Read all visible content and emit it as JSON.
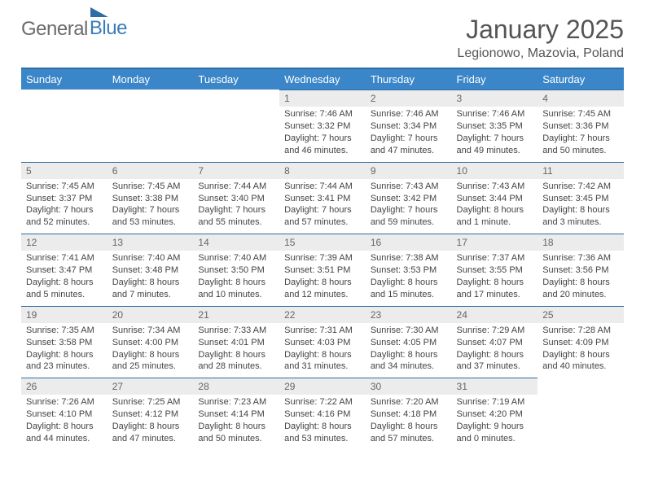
{
  "logo": {
    "text1": "General",
    "text2": "Blue"
  },
  "title": "January 2025",
  "location": "Legionowo, Mazovia, Poland",
  "colors": {
    "header_bg": "#3a86c8",
    "header_text": "#ffffff",
    "accent_line": "#2e6da4",
    "daynum_bg": "#ececec",
    "text": "#444444"
  },
  "day_labels": [
    "Sunday",
    "Monday",
    "Tuesday",
    "Wednesday",
    "Thursday",
    "Friday",
    "Saturday"
  ],
  "weeks": [
    [
      {
        "n": "",
        "sr": "",
        "ss": "",
        "dl": ""
      },
      {
        "n": "",
        "sr": "",
        "ss": "",
        "dl": ""
      },
      {
        "n": "",
        "sr": "",
        "ss": "",
        "dl": ""
      },
      {
        "n": "1",
        "sr": "Sunrise: 7:46 AM",
        "ss": "Sunset: 3:32 PM",
        "dl": "Daylight: 7 hours and 46 minutes."
      },
      {
        "n": "2",
        "sr": "Sunrise: 7:46 AM",
        "ss": "Sunset: 3:34 PM",
        "dl": "Daylight: 7 hours and 47 minutes."
      },
      {
        "n": "3",
        "sr": "Sunrise: 7:46 AM",
        "ss": "Sunset: 3:35 PM",
        "dl": "Daylight: 7 hours and 49 minutes."
      },
      {
        "n": "4",
        "sr": "Sunrise: 7:45 AM",
        "ss": "Sunset: 3:36 PM",
        "dl": "Daylight: 7 hours and 50 minutes."
      }
    ],
    [
      {
        "n": "5",
        "sr": "Sunrise: 7:45 AM",
        "ss": "Sunset: 3:37 PM",
        "dl": "Daylight: 7 hours and 52 minutes."
      },
      {
        "n": "6",
        "sr": "Sunrise: 7:45 AM",
        "ss": "Sunset: 3:38 PM",
        "dl": "Daylight: 7 hours and 53 minutes."
      },
      {
        "n": "7",
        "sr": "Sunrise: 7:44 AM",
        "ss": "Sunset: 3:40 PM",
        "dl": "Daylight: 7 hours and 55 minutes."
      },
      {
        "n": "8",
        "sr": "Sunrise: 7:44 AM",
        "ss": "Sunset: 3:41 PM",
        "dl": "Daylight: 7 hours and 57 minutes."
      },
      {
        "n": "9",
        "sr": "Sunrise: 7:43 AM",
        "ss": "Sunset: 3:42 PM",
        "dl": "Daylight: 7 hours and 59 minutes."
      },
      {
        "n": "10",
        "sr": "Sunrise: 7:43 AM",
        "ss": "Sunset: 3:44 PM",
        "dl": "Daylight: 8 hours and 1 minute."
      },
      {
        "n": "11",
        "sr": "Sunrise: 7:42 AM",
        "ss": "Sunset: 3:45 PM",
        "dl": "Daylight: 8 hours and 3 minutes."
      }
    ],
    [
      {
        "n": "12",
        "sr": "Sunrise: 7:41 AM",
        "ss": "Sunset: 3:47 PM",
        "dl": "Daylight: 8 hours and 5 minutes."
      },
      {
        "n": "13",
        "sr": "Sunrise: 7:40 AM",
        "ss": "Sunset: 3:48 PM",
        "dl": "Daylight: 8 hours and 7 minutes."
      },
      {
        "n": "14",
        "sr": "Sunrise: 7:40 AM",
        "ss": "Sunset: 3:50 PM",
        "dl": "Daylight: 8 hours and 10 minutes."
      },
      {
        "n": "15",
        "sr": "Sunrise: 7:39 AM",
        "ss": "Sunset: 3:51 PM",
        "dl": "Daylight: 8 hours and 12 minutes."
      },
      {
        "n": "16",
        "sr": "Sunrise: 7:38 AM",
        "ss": "Sunset: 3:53 PM",
        "dl": "Daylight: 8 hours and 15 minutes."
      },
      {
        "n": "17",
        "sr": "Sunrise: 7:37 AM",
        "ss": "Sunset: 3:55 PM",
        "dl": "Daylight: 8 hours and 17 minutes."
      },
      {
        "n": "18",
        "sr": "Sunrise: 7:36 AM",
        "ss": "Sunset: 3:56 PM",
        "dl": "Daylight: 8 hours and 20 minutes."
      }
    ],
    [
      {
        "n": "19",
        "sr": "Sunrise: 7:35 AM",
        "ss": "Sunset: 3:58 PM",
        "dl": "Daylight: 8 hours and 23 minutes."
      },
      {
        "n": "20",
        "sr": "Sunrise: 7:34 AM",
        "ss": "Sunset: 4:00 PM",
        "dl": "Daylight: 8 hours and 25 minutes."
      },
      {
        "n": "21",
        "sr": "Sunrise: 7:33 AM",
        "ss": "Sunset: 4:01 PM",
        "dl": "Daylight: 8 hours and 28 minutes."
      },
      {
        "n": "22",
        "sr": "Sunrise: 7:31 AM",
        "ss": "Sunset: 4:03 PM",
        "dl": "Daylight: 8 hours and 31 minutes."
      },
      {
        "n": "23",
        "sr": "Sunrise: 7:30 AM",
        "ss": "Sunset: 4:05 PM",
        "dl": "Daylight: 8 hours and 34 minutes."
      },
      {
        "n": "24",
        "sr": "Sunrise: 7:29 AM",
        "ss": "Sunset: 4:07 PM",
        "dl": "Daylight: 8 hours and 37 minutes."
      },
      {
        "n": "25",
        "sr": "Sunrise: 7:28 AM",
        "ss": "Sunset: 4:09 PM",
        "dl": "Daylight: 8 hours and 40 minutes."
      }
    ],
    [
      {
        "n": "26",
        "sr": "Sunrise: 7:26 AM",
        "ss": "Sunset: 4:10 PM",
        "dl": "Daylight: 8 hours and 44 minutes."
      },
      {
        "n": "27",
        "sr": "Sunrise: 7:25 AM",
        "ss": "Sunset: 4:12 PM",
        "dl": "Daylight: 8 hours and 47 minutes."
      },
      {
        "n": "28",
        "sr": "Sunrise: 7:23 AM",
        "ss": "Sunset: 4:14 PM",
        "dl": "Daylight: 8 hours and 50 minutes."
      },
      {
        "n": "29",
        "sr": "Sunrise: 7:22 AM",
        "ss": "Sunset: 4:16 PM",
        "dl": "Daylight: 8 hours and 53 minutes."
      },
      {
        "n": "30",
        "sr": "Sunrise: 7:20 AM",
        "ss": "Sunset: 4:18 PM",
        "dl": "Daylight: 8 hours and 57 minutes."
      },
      {
        "n": "31",
        "sr": "Sunrise: 7:19 AM",
        "ss": "Sunset: 4:20 PM",
        "dl": "Daylight: 9 hours and 0 minutes."
      },
      {
        "n": "",
        "sr": "",
        "ss": "",
        "dl": ""
      }
    ]
  ]
}
